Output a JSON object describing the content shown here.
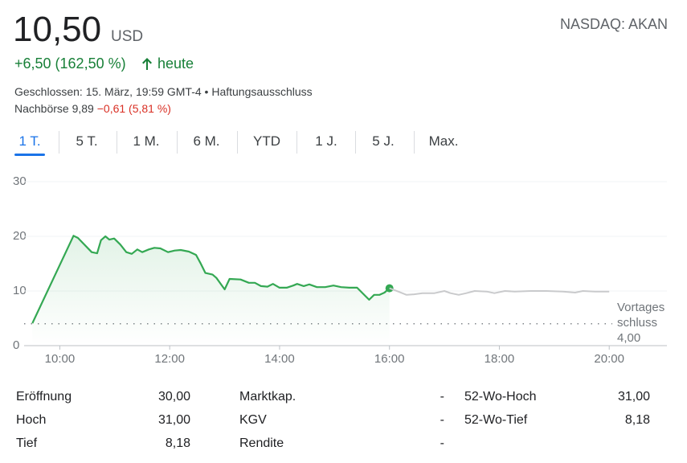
{
  "header": {
    "price": "10,50",
    "currency": "USD",
    "exchange": "NASDAQ: AKAN",
    "change": "+6,50 (162,50 %)",
    "period": "heute",
    "closed": "Geschlossen: 15. März, 19:59 GMT-4 •",
    "disclaimer": "Haftungsausschluss",
    "after_hours": "Nachbörse 9,89",
    "after_hours_change": "−0,61 (5,81 %)"
  },
  "tabs": {
    "items": [
      "1 T.",
      "5 T.",
      "1 M.",
      "6 M.",
      "YTD",
      "1 J.",
      "5 J.",
      "Max."
    ],
    "selected": 0
  },
  "chart_data": {
    "type": "line",
    "xlim": [
      9.35,
      21.05
    ],
    "xticks": [
      {
        "value": 10,
        "label": "10:00"
      },
      {
        "value": 12,
        "label": "12:00"
      },
      {
        "value": 14,
        "label": "14:00"
      },
      {
        "value": 16,
        "label": "16:00"
      },
      {
        "value": 18,
        "label": "18:00"
      },
      {
        "value": 20,
        "label": "20:00"
      }
    ],
    "ylim": [
      0,
      30
    ],
    "yticks": [
      0,
      10,
      20,
      30
    ],
    "grid": true,
    "previous_close": {
      "value": 4,
      "label": "4,00"
    },
    "previous_close_label": [
      "Vortages",
      "schluss"
    ],
    "series": [
      {
        "color": "#34a853",
        "x": [
          9.5,
          10.25,
          10.33,
          10.58,
          10.68,
          10.75,
          10.83,
          10.9,
          10.99,
          11.1,
          11.21,
          11.31,
          11.41,
          11.5,
          11.62,
          11.72,
          11.83,
          11.97,
          12.09,
          12.2,
          12.35,
          12.48,
          12.56,
          12.65,
          12.78,
          12.85,
          13.0,
          13.09,
          13.29,
          13.44,
          13.55,
          13.66,
          13.78,
          13.88,
          14.0,
          14.13,
          14.25,
          14.32,
          14.44,
          14.54,
          14.68,
          14.83,
          14.98,
          15.12,
          15.27,
          15.41,
          15.56,
          15.63,
          15.72,
          15.82,
          15.91,
          16.0
        ],
        "values": [
          4.1,
          20.1,
          19.7,
          17.1,
          16.9,
          19.3,
          20.0,
          19.4,
          19.6,
          18.5,
          17.1,
          16.8,
          17.6,
          17.1,
          17.6,
          17.9,
          17.8,
          17.1,
          17.4,
          17.5,
          17.2,
          16.6,
          15.1,
          13.3,
          13.0,
          12.4,
          10.3,
          12.2,
          12.1,
          11.5,
          11.5,
          10.9,
          10.8,
          11.3,
          10.6,
          10.6,
          11.0,
          11.3,
          10.9,
          11.2,
          10.7,
          10.7,
          11.0,
          10.7,
          10.6,
          10.6,
          9.1,
          8.4,
          9.3,
          9.3,
          9.7,
          10.5
        ]
      },
      {
        "color": "#c9cacc",
        "x": [
          16.0,
          16.16,
          16.31,
          16.45,
          16.6,
          16.82,
          17.0,
          17.11,
          17.26,
          17.4,
          17.55,
          17.77,
          17.91,
          18.1,
          18.28,
          18.57,
          18.86,
          19.16,
          19.38,
          19.52,
          19.74,
          20.0
        ],
        "values": [
          10.5,
          9.9,
          9.3,
          9.4,
          9.6,
          9.6,
          10.0,
          9.6,
          9.3,
          9.6,
          10.0,
          9.9,
          9.6,
          10.0,
          9.9,
          10.0,
          10.0,
          9.9,
          9.7,
          10.0,
          9.9,
          9.9
        ]
      }
    ]
  },
  "table": {
    "rows": [
      [
        "Eröffnung",
        "30,00",
        "Marktkap.",
        "-",
        "52-Wo-Hoch",
        "31,00"
      ],
      [
        "Hoch",
        "31,00",
        "KGV",
        "-",
        "52-Wo-Tief",
        "8,18"
      ],
      [
        "Tief",
        "8,18",
        "Rendite",
        "-"
      ]
    ]
  }
}
